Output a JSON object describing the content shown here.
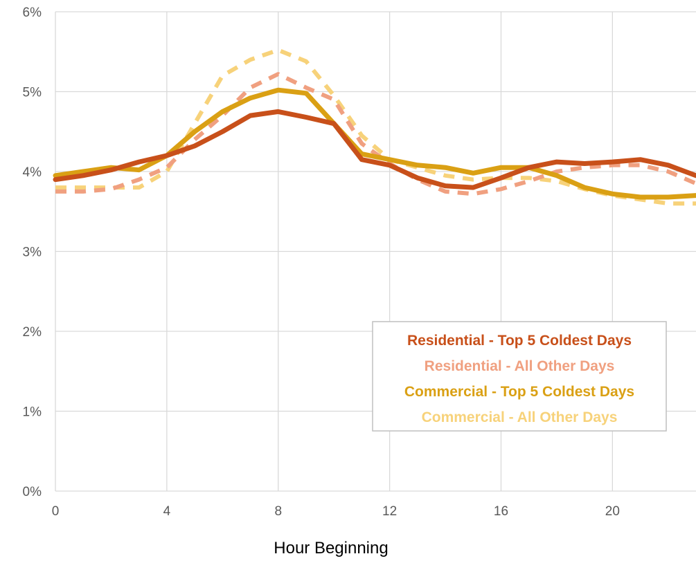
{
  "chart_data": {
    "type": "line",
    "title": "",
    "xlabel": "Hour Beginning",
    "ylabel": "",
    "xlim": [
      0,
      23
    ],
    "ylim": [
      0,
      6
    ],
    "x_ticks": [
      0,
      4,
      8,
      12,
      16,
      20
    ],
    "y_ticks": [
      "0%",
      "1%",
      "2%",
      "3%",
      "4%",
      "5%",
      "6%"
    ],
    "grid": true,
    "legend_position": "bottom-right",
    "x": [
      0,
      1,
      2,
      3,
      4,
      5,
      6,
      7,
      8,
      9,
      10,
      11,
      12,
      13,
      14,
      15,
      16,
      17,
      18,
      19,
      20,
      21,
      22,
      23
    ],
    "series": [
      {
        "name": "Commercial - All Other Days",
        "color": "#F7D27A",
        "style": "dashed",
        "values": [
          3.8,
          3.8,
          3.8,
          3.8,
          4.0,
          4.6,
          5.2,
          5.4,
          5.52,
          5.38,
          4.95,
          4.45,
          4.15,
          4.05,
          3.95,
          3.9,
          3.92,
          3.92,
          3.88,
          3.78,
          3.7,
          3.65,
          3.6,
          3.6
        ]
      },
      {
        "name": "Residential - All Other Days",
        "color": "#F0A080",
        "style": "dashed",
        "values": [
          3.75,
          3.75,
          3.78,
          3.9,
          4.05,
          4.4,
          4.7,
          5.05,
          5.22,
          5.05,
          4.9,
          4.35,
          4.1,
          3.9,
          3.75,
          3.72,
          3.78,
          3.88,
          4.0,
          4.05,
          4.08,
          4.08,
          4.0,
          3.85
        ]
      },
      {
        "name": "Commercial - Top 5 Coldest Days",
        "color": "#DAA014",
        "style": "solid",
        "values": [
          3.95,
          4.0,
          4.05,
          4.02,
          4.2,
          4.5,
          4.75,
          4.92,
          5.02,
          4.98,
          4.6,
          4.22,
          4.15,
          4.08,
          4.05,
          3.98,
          4.05,
          4.05,
          3.95,
          3.8,
          3.72,
          3.68,
          3.68,
          3.7
        ]
      },
      {
        "name": "Residential - Top 5 Coldest Days",
        "color": "#C8501A",
        "style": "solid",
        "values": [
          3.9,
          3.95,
          4.02,
          4.12,
          4.2,
          4.32,
          4.5,
          4.7,
          4.75,
          4.68,
          4.6,
          4.15,
          4.08,
          3.92,
          3.82,
          3.8,
          3.92,
          4.05,
          4.12,
          4.1,
          4.12,
          4.15,
          4.08,
          3.95
        ]
      }
    ],
    "legend": [
      {
        "label": "Residential - Top 5 Coldest Days",
        "color": "#C8501A"
      },
      {
        "label": "Residential - All Other Days",
        "color": "#F0A080"
      },
      {
        "label": "Commercial - Top 5 Coldest Days",
        "color": "#DAA014"
      },
      {
        "label": "Commercial - All Other Days",
        "color": "#F7D27A"
      }
    ]
  }
}
